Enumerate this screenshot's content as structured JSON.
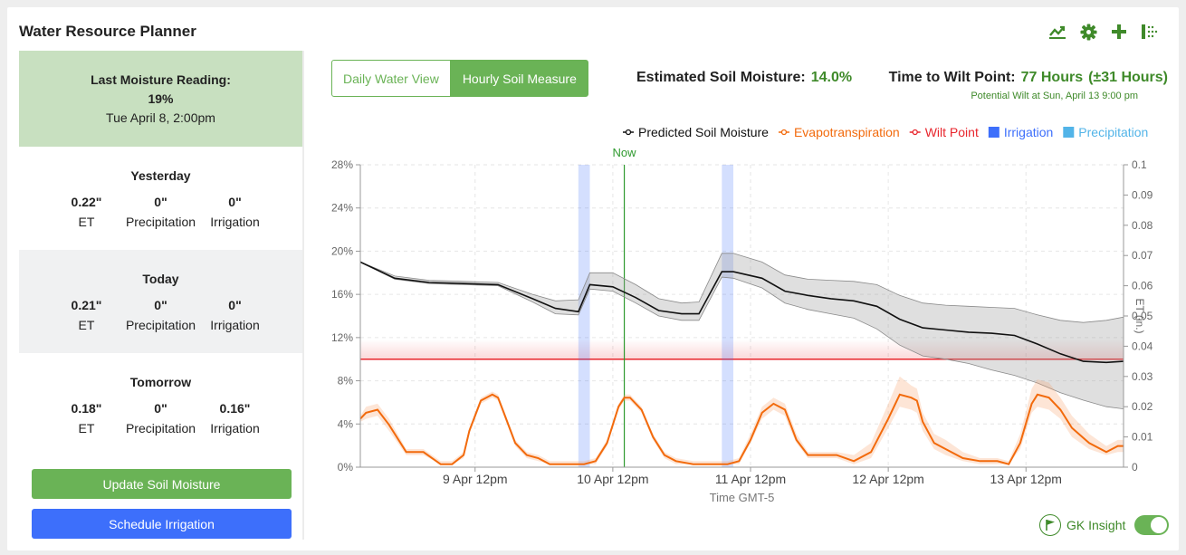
{
  "app": {
    "title": "Water Resource Planner"
  },
  "toolbar": {
    "icons": [
      "chart-icon",
      "gear-icon",
      "plus-icon",
      "export-icon"
    ]
  },
  "reading": {
    "label": "Last Moisture Reading:",
    "value": "19%",
    "time": "Tue April 8, 2:00pm"
  },
  "days": [
    {
      "title": "Yesterday",
      "et": "0.22\"",
      "precip": "0\"",
      "irrig": "0\""
    },
    {
      "title": "Today",
      "et": "0.21\"",
      "precip": "0\"",
      "irrig": "0\""
    },
    {
      "title": "Tomorrow",
      "et": "0.18\"",
      "precip": "0\"",
      "irrig": "0.16\""
    }
  ],
  "labels": {
    "et": "ET",
    "precip": "Precipitation",
    "irrig": "Irrigation"
  },
  "buttons": {
    "update": "Update Soil Moisture",
    "schedule": "Schedule Irrigation"
  },
  "view_toggle": {
    "daily": "Daily Water View",
    "hourly": "Hourly Soil Measure"
  },
  "estimate": {
    "label": "Estimated Soil Moisture:",
    "value": "14.0%"
  },
  "wilt": {
    "label": "Time to Wilt Point:",
    "value": "77 Hours",
    "range": "(±31 Hours)",
    "sub": "Potential Wilt at Sun, April 13 9:00 pm"
  },
  "insight": {
    "label": "GK Insight",
    "enabled": true
  },
  "colors": {
    "green": "#6ab356",
    "blue": "#3d6ffb",
    "moisture": "#111111",
    "et": "#f26a0c",
    "wilt": "#e8262d",
    "irrigation": "#3d6ffb",
    "precipitation": "#52b4e8"
  },
  "chart_data": {
    "type": "line",
    "legend": [
      {
        "name": "Predicted Soil Moisture",
        "color": "#111111",
        "kind": "line"
      },
      {
        "name": "Evapotranspiration",
        "color": "#f26a0c",
        "kind": "line"
      },
      {
        "name": "Wilt Point",
        "color": "#e8262d",
        "kind": "line"
      },
      {
        "name": "Irrigation",
        "color": "#3d6ffb",
        "kind": "box"
      },
      {
        "name": "Precipitation",
        "color": "#52b4e8",
        "kind": "box"
      }
    ],
    "xlabel": "Time GMT-5",
    "y_left": {
      "ticks": [
        "0%",
        "4%",
        "8%",
        "12%",
        "16%",
        "20%",
        "24%",
        "28%"
      ],
      "ylim": [
        0,
        28
      ]
    },
    "y_right": {
      "label": "ET (in.)",
      "ticks": [
        "0",
        "0.01",
        "0.02",
        "0.03",
        "0.04",
        "0.05",
        "0.06",
        "0.07",
        "0.08",
        "0.09",
        "0.1"
      ],
      "ylim": [
        0,
        0.1
      ]
    },
    "x_ticks": [
      {
        "label": "9 Apr 12pm",
        "t": 36
      },
      {
        "label": "10 Apr 12pm",
        "t": 60
      },
      {
        "label": "11 Apr 12pm",
        "t": 84
      },
      {
        "label": "12 Apr 12pm",
        "t": 108
      },
      {
        "label": "13 Apr 12pm",
        "t": 132
      }
    ],
    "x_range_hours": [
      16,
      149
    ],
    "now": {
      "label": "Now",
      "t": 62
    },
    "wilt_point": 10,
    "irrigation_windows": [
      [
        54,
        56
      ],
      [
        79,
        81
      ]
    ],
    "moisture": {
      "t": [
        16,
        22,
        28,
        34,
        40,
        46,
        50,
        54,
        56,
        60,
        64,
        68,
        72,
        75,
        79,
        81,
        86,
        90,
        94,
        98,
        102,
        106,
        110,
        114,
        118,
        122,
        126,
        130,
        134,
        138,
        142,
        146,
        149
      ],
      "value": [
        19.0,
        17.5,
        17.1,
        17.0,
        16.9,
        15.6,
        14.7,
        14.4,
        16.9,
        16.7,
        15.7,
        14.5,
        14.2,
        14.2,
        18.1,
        18.1,
        17.5,
        16.3,
        15.9,
        15.6,
        15.4,
        14.9,
        13.7,
        12.9,
        12.7,
        12.5,
        12.4,
        12.2,
        11.4,
        10.5,
        9.8,
        9.7,
        9.8
      ],
      "lower": [
        19.0,
        17.4,
        17.0,
        16.9,
        16.8,
        15.3,
        14.2,
        14.1,
        16.5,
        16.3,
        15.2,
        14.0,
        13.6,
        13.6,
        17.6,
        17.5,
        16.6,
        15.2,
        14.6,
        14.2,
        13.8,
        12.8,
        11.3,
        10.3,
        10.0,
        9.6,
        9.0,
        8.5,
        7.8,
        6.9,
        6.2,
        5.6,
        5.4
      ],
      "upper": [
        19.0,
        17.7,
        17.3,
        17.2,
        17.1,
        16.0,
        15.4,
        15.5,
        18.0,
        18.0,
        16.9,
        15.6,
        15.2,
        15.3,
        19.8,
        19.8,
        19.0,
        17.8,
        17.4,
        17.3,
        17.2,
        16.9,
        15.9,
        15.2,
        15.0,
        14.9,
        14.8,
        14.7,
        14.1,
        13.6,
        13.4,
        13.6,
        13.9
      ]
    },
    "evapotranspiration": {
      "t": [
        16,
        17,
        19,
        21,
        24,
        27,
        30,
        32,
        34,
        35,
        37,
        39,
        40,
        41,
        43,
        45,
        47,
        49,
        52,
        55,
        57,
        59,
        61,
        62,
        63,
        65,
        67,
        69,
        71,
        74,
        77,
        80,
        82,
        84,
        86,
        88,
        90,
        91,
        92,
        94,
        96,
        99,
        102,
        105,
        108,
        110,
        112,
        113,
        114,
        116,
        118,
        121,
        124,
        127,
        129,
        131,
        133,
        134,
        136,
        138,
        140,
        143,
        146,
        148,
        149
      ],
      "value": [
        0.016,
        0.018,
        0.019,
        0.014,
        0.005,
        0.005,
        0.001,
        0.001,
        0.004,
        0.012,
        0.022,
        0.024,
        0.023,
        0.018,
        0.008,
        0.004,
        0.003,
        0.001,
        0.001,
        0.001,
        0.002,
        0.008,
        0.02,
        0.023,
        0.023,
        0.019,
        0.01,
        0.004,
        0.002,
        0.001,
        0.001,
        0.001,
        0.002,
        0.009,
        0.018,
        0.021,
        0.019,
        0.014,
        0.009,
        0.004,
        0.004,
        0.004,
        0.002,
        0.005,
        0.016,
        0.024,
        0.023,
        0.022,
        0.015,
        0.008,
        0.006,
        0.003,
        0.002,
        0.002,
        0.001,
        0.008,
        0.021,
        0.024,
        0.023,
        0.019,
        0.013,
        0.008,
        0.005,
        0.007,
        0.007
      ],
      "lower": [
        0.015,
        0.016,
        0.017,
        0.012,
        0.004,
        0.004,
        0.001,
        0.001,
        0.003,
        0.011,
        0.021,
        0.023,
        0.022,
        0.017,
        0.007,
        0.003,
        0.002,
        0.001,
        0.001,
        0.001,
        0.001,
        0.007,
        0.019,
        0.022,
        0.022,
        0.018,
        0.009,
        0.003,
        0.001,
        0.001,
        0.001,
        0.001,
        0.001,
        0.008,
        0.016,
        0.019,
        0.017,
        0.012,
        0.008,
        0.003,
        0.003,
        0.003,
        0.001,
        0.003,
        0.013,
        0.02,
        0.019,
        0.018,
        0.012,
        0.006,
        0.004,
        0.002,
        0.001,
        0.001,
        0.001,
        0.006,
        0.018,
        0.02,
        0.019,
        0.016,
        0.01,
        0.006,
        0.004,
        0.005,
        0.005
      ],
      "upper": [
        0.017,
        0.02,
        0.021,
        0.016,
        0.006,
        0.006,
        0.002,
        0.002,
        0.005,
        0.013,
        0.023,
        0.025,
        0.024,
        0.019,
        0.009,
        0.005,
        0.004,
        0.002,
        0.002,
        0.002,
        0.003,
        0.009,
        0.021,
        0.024,
        0.024,
        0.02,
        0.011,
        0.005,
        0.003,
        0.002,
        0.002,
        0.002,
        0.003,
        0.011,
        0.02,
        0.023,
        0.021,
        0.016,
        0.011,
        0.005,
        0.005,
        0.005,
        0.004,
        0.008,
        0.021,
        0.03,
        0.027,
        0.026,
        0.018,
        0.011,
        0.009,
        0.005,
        0.003,
        0.003,
        0.002,
        0.011,
        0.026,
        0.029,
        0.028,
        0.023,
        0.017,
        0.011,
        0.007,
        0.009,
        0.009
      ]
    }
  }
}
